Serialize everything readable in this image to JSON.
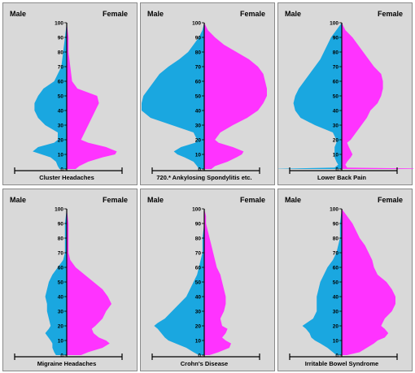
{
  "colors": {
    "male": "#1aa7e0",
    "female": "#ff33ff",
    "axis": "#000000",
    "panel_bg": "#d9d9d9"
  },
  "chart_data": [
    {
      "type": "area",
      "title": "Cluster Headaches",
      "left_label": "Male",
      "right_label": "Female",
      "yticks": [
        0,
        10,
        20,
        30,
        40,
        50,
        60,
        70,
        80,
        90,
        100
      ],
      "ylim": [
        0,
        100
      ],
      "series": [
        {
          "name": "Male",
          "y": [
            0,
            2,
            5,
            8,
            10,
            12,
            15,
            18,
            20,
            25,
            30,
            35,
            40,
            45,
            50,
            55,
            60,
            65,
            70,
            80,
            90,
            100
          ],
          "values": [
            4,
            5,
            6,
            9,
            14,
            19,
            16,
            7,
            5,
            5,
            12,
            16,
            18,
            18,
            16,
            13,
            7,
            5,
            3,
            2,
            1,
            0
          ]
        },
        {
          "name": "Female",
          "y": [
            0,
            2,
            5,
            8,
            10,
            12,
            15,
            18,
            20,
            25,
            30,
            35,
            40,
            45,
            50,
            55,
            60,
            70,
            80,
            90,
            100
          ],
          "values": [
            5,
            7,
            12,
            20,
            27,
            28,
            22,
            12,
            8,
            10,
            12,
            14,
            16,
            18,
            17,
            6,
            3,
            2,
            1,
            1,
            0
          ]
        }
      ]
    },
    {
      "type": "area",
      "title": "720.* Ankylosing Spondylitis etc.",
      "left_label": "Male",
      "right_label": "Female",
      "yticks": [
        0,
        10,
        20,
        30,
        40,
        50,
        60,
        70,
        80,
        90,
        100
      ],
      "ylim": [
        0,
        100
      ],
      "series": [
        {
          "name": "Male",
          "y": [
            0,
            2,
            5,
            8,
            10,
            12,
            15,
            18,
            20,
            25,
            30,
            35,
            40,
            45,
            50,
            55,
            60,
            65,
            70,
            75,
            80,
            90,
            95,
            100
          ],
          "values": [
            3,
            4,
            6,
            11,
            15,
            17,
            13,
            5,
            4,
            6,
            18,
            30,
            35,
            35,
            34,
            31,
            28,
            25,
            20,
            14,
            9,
            3,
            1,
            0
          ]
        },
        {
          "name": "Female",
          "y": [
            0,
            2,
            5,
            8,
            10,
            12,
            15,
            18,
            20,
            25,
            30,
            35,
            40,
            45,
            50,
            55,
            60,
            65,
            70,
            75,
            80,
            85,
            90,
            95,
            100
          ],
          "values": [
            4,
            6,
            13,
            18,
            21,
            22,
            16,
            8,
            6,
            9,
            16,
            24,
            30,
            33,
            35,
            35,
            34,
            33,
            30,
            25,
            18,
            11,
            6,
            2,
            0
          ]
        }
      ]
    },
    {
      "type": "area",
      "title": "Lower Back Pain",
      "left_label": "Male",
      "right_label": "Female",
      "yticks": [
        0,
        10,
        20,
        30,
        40,
        50,
        60,
        70,
        80,
        90,
        100
      ],
      "ylim": [
        0,
        100
      ],
      "series": [
        {
          "name": "Male",
          "y": [
            0,
            1,
            3,
            5,
            8,
            10,
            15,
            18,
            20,
            25,
            30,
            35,
            40,
            45,
            50,
            55,
            60,
            65,
            70,
            75,
            80,
            85,
            90,
            95,
            100
          ],
          "values": [
            40,
            4,
            2,
            3,
            4,
            4,
            4,
            3,
            3,
            5,
            15,
            23,
            26,
            27,
            26,
            24,
            21,
            18,
            15,
            12,
            10,
            8,
            6,
            3,
            0
          ]
        },
        {
          "name": "Female",
          "y": [
            0,
            1,
            3,
            5,
            8,
            10,
            15,
            18,
            20,
            25,
            30,
            35,
            40,
            45,
            50,
            55,
            60,
            65,
            70,
            80,
            90,
            95,
            100
          ],
          "values": [
            60,
            3,
            2,
            3,
            5,
            6,
            4,
            3,
            5,
            8,
            11,
            14,
            16,
            20,
            22,
            23,
            23,
            22,
            18,
            12,
            6,
            2,
            0
          ]
        }
      ]
    },
    {
      "type": "area",
      "title": "Migraine Headaches",
      "left_label": "Male",
      "right_label": "Female",
      "yticks": [
        0,
        10,
        20,
        30,
        40,
        50,
        60,
        70,
        80,
        90,
        100
      ],
      "ylim": [
        0,
        100
      ],
      "series": [
        {
          "name": "Male",
          "y": [
            0,
            2,
            5,
            8,
            10,
            15,
            18,
            20,
            25,
            30,
            35,
            40,
            45,
            50,
            55,
            60,
            65,
            70,
            80,
            90,
            100
          ],
          "values": [
            6,
            7,
            8,
            8,
            9,
            12,
            10,
            9,
            10,
            11,
            11,
            12,
            11,
            10,
            8,
            5,
            2,
            1,
            1,
            1,
            0
          ]
        },
        {
          "name": "Female",
          "y": [
            0,
            2,
            5,
            8,
            10,
            12,
            15,
            18,
            20,
            25,
            30,
            35,
            40,
            45,
            50,
            55,
            60,
            65,
            70,
            80,
            90,
            100
          ],
          "values": [
            8,
            12,
            20,
            24,
            22,
            18,
            15,
            14,
            16,
            20,
            22,
            25,
            23,
            20,
            15,
            10,
            5,
            2,
            1,
            1,
            1,
            0
          ]
        }
      ]
    },
    {
      "type": "area",
      "title": "Crohn's Disease",
      "left_label": "Male",
      "right_label": "Female",
      "yticks": [
        0,
        10,
        20,
        30,
        40,
        50,
        60,
        70,
        80,
        90,
        100
      ],
      "ylim": [
        0,
        100
      ],
      "series": [
        {
          "name": "Male",
          "y": [
            0,
            2,
            5,
            8,
            10,
            12,
            15,
            18,
            20,
            22,
            25,
            30,
            35,
            40,
            45,
            50,
            55,
            60,
            65,
            70,
            80,
            90,
            100
          ],
          "values": [
            3,
            6,
            10,
            16,
            20,
            22,
            24,
            26,
            28,
            26,
            22,
            18,
            14,
            10,
            8,
            6,
            4,
            3,
            2,
            1,
            1,
            0,
            0
          ]
        },
        {
          "name": "Female",
          "y": [
            0,
            2,
            5,
            8,
            10,
            12,
            15,
            18,
            20,
            25,
            30,
            35,
            40,
            45,
            50,
            55,
            60,
            65,
            70,
            75,
            80,
            85,
            90,
            95,
            100
          ],
          "values": [
            3,
            8,
            14,
            15,
            12,
            10,
            12,
            13,
            10,
            9,
            11,
            12,
            12,
            11,
            10,
            9,
            7,
            6,
            5,
            4,
            3,
            2,
            1,
            1,
            0
          ]
        }
      ]
    },
    {
      "type": "area",
      "title": "Irritable Bowel Syndrome",
      "left_label": "Male",
      "right_label": "Female",
      "yticks": [
        0,
        10,
        20,
        30,
        40,
        50,
        60,
        70,
        80,
        90,
        100
      ],
      "ylim": [
        0,
        100
      ],
      "series": [
        {
          "name": "Male",
          "y": [
            0,
            2,
            5,
            8,
            10,
            12,
            15,
            18,
            20,
            25,
            30,
            35,
            40,
            45,
            50,
            55,
            60,
            65,
            70,
            80,
            90,
            100
          ],
          "values": [
            3,
            5,
            8,
            12,
            15,
            17,
            18,
            20,
            22,
            16,
            14,
            14,
            14,
            13,
            12,
            10,
            8,
            5,
            3,
            1,
            1,
            0
          ]
        },
        {
          "name": "Female",
          "y": [
            0,
            2,
            5,
            8,
            10,
            12,
            15,
            18,
            20,
            25,
            30,
            35,
            40,
            45,
            50,
            55,
            60,
            65,
            70,
            75,
            80,
            85,
            90,
            95,
            100
          ],
          "values": [
            3,
            10,
            14,
            18,
            20,
            24,
            26,
            24,
            22,
            24,
            28,
            30,
            30,
            28,
            25,
            20,
            18,
            17,
            15,
            13,
            10,
            8,
            6,
            3,
            0
          ]
        }
      ]
    }
  ]
}
